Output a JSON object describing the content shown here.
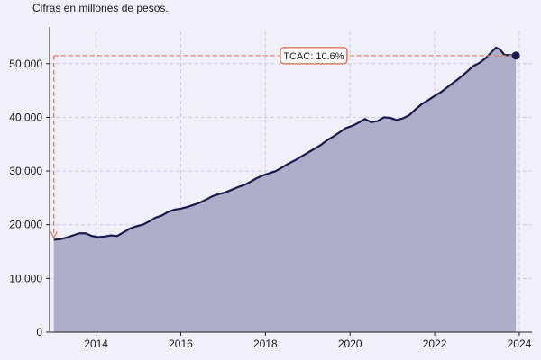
{
  "chart_data": {
    "type": "area",
    "subtitle": "Cifras en millones de pesos.",
    "xlim": [
      2012.9,
      2024.3
    ],
    "ylim": [
      0,
      56000
    ],
    "xticks": [
      {
        "value": 2014,
        "label": "2014"
      },
      {
        "value": 2016,
        "label": "2016"
      },
      {
        "value": 2018,
        "label": "2018"
      },
      {
        "value": 2020,
        "label": "2020"
      },
      {
        "value": 2022,
        "label": "2022"
      },
      {
        "value": 2024,
        "label": "2024"
      }
    ],
    "yticks": [
      {
        "value": 0,
        "label": "0"
      },
      {
        "value": 10000,
        "label": "10,000"
      },
      {
        "value": 20000,
        "label": "20,000"
      },
      {
        "value": 30000,
        "label": "30,000"
      },
      {
        "value": 40000,
        "label": "40,000"
      },
      {
        "value": 50000,
        "label": "50,000"
      }
    ],
    "grid": true,
    "colors": {
      "area_fill": "#aeaecb",
      "line": "#1a1a4e",
      "end_marker": "#1a1a4e",
      "annotation": "#e8805e",
      "grid": "#c9c9ee"
    },
    "annotation": {
      "text": "TCAC: 10.6%",
      "start": {
        "x": 2013.0,
        "y": 17200
      },
      "end": {
        "x": 2023.92,
        "y": 51500
      }
    },
    "series": [
      {
        "x": [
          2013.0,
          2013.15,
          2013.3,
          2013.45,
          2013.6,
          2013.75,
          2013.9,
          2014.05,
          2014.2,
          2014.35,
          2014.5,
          2014.65,
          2014.8,
          2014.95,
          2015.1,
          2015.25,
          2015.4,
          2015.55,
          2015.7,
          2015.85,
          2016.0,
          2016.15,
          2016.3,
          2016.45,
          2016.6,
          2016.75,
          2016.9,
          2017.05,
          2017.2,
          2017.35,
          2017.5,
          2017.65,
          2017.8,
          2017.95,
          2018.1,
          2018.25,
          2018.4,
          2018.55,
          2018.7,
          2018.85,
          2019.0,
          2019.15,
          2019.3,
          2019.45,
          2019.6,
          2019.75,
          2019.9,
          2020.05,
          2020.2,
          2020.35,
          2020.5,
          2020.65,
          2020.8,
          2020.95,
          2021.1,
          2021.25,
          2021.4,
          2021.55,
          2021.7,
          2021.85,
          2022.0,
          2022.15,
          2022.3,
          2022.45,
          2022.6,
          2022.75,
          2022.9,
          2023.05,
          2023.2,
          2023.35,
          2023.45,
          2023.55,
          2023.65,
          2023.75,
          2023.92
        ],
        "y": [
          17200,
          17300,
          17600,
          18000,
          18400,
          18400,
          17900,
          17700,
          17800,
          18000,
          17900,
          18600,
          19300,
          19700,
          20000,
          20600,
          21300,
          21700,
          22400,
          22800,
          23000,
          23300,
          23700,
          24100,
          24700,
          25300,
          25700,
          26000,
          26500,
          27000,
          27400,
          28000,
          28700,
          29200,
          29600,
          30000,
          30700,
          31400,
          32000,
          32700,
          33400,
          34100,
          34800,
          35700,
          36400,
          37200,
          38000,
          38400,
          39000,
          39700,
          39100,
          39300,
          40000,
          39900,
          39500,
          39800,
          40400,
          41500,
          42500,
          43200,
          44000,
          44700,
          45600,
          46500,
          47400,
          48400,
          49500,
          50100,
          51000,
          52200,
          53000,
          52600,
          51600,
          51600,
          51500
        ]
      }
    ]
  }
}
